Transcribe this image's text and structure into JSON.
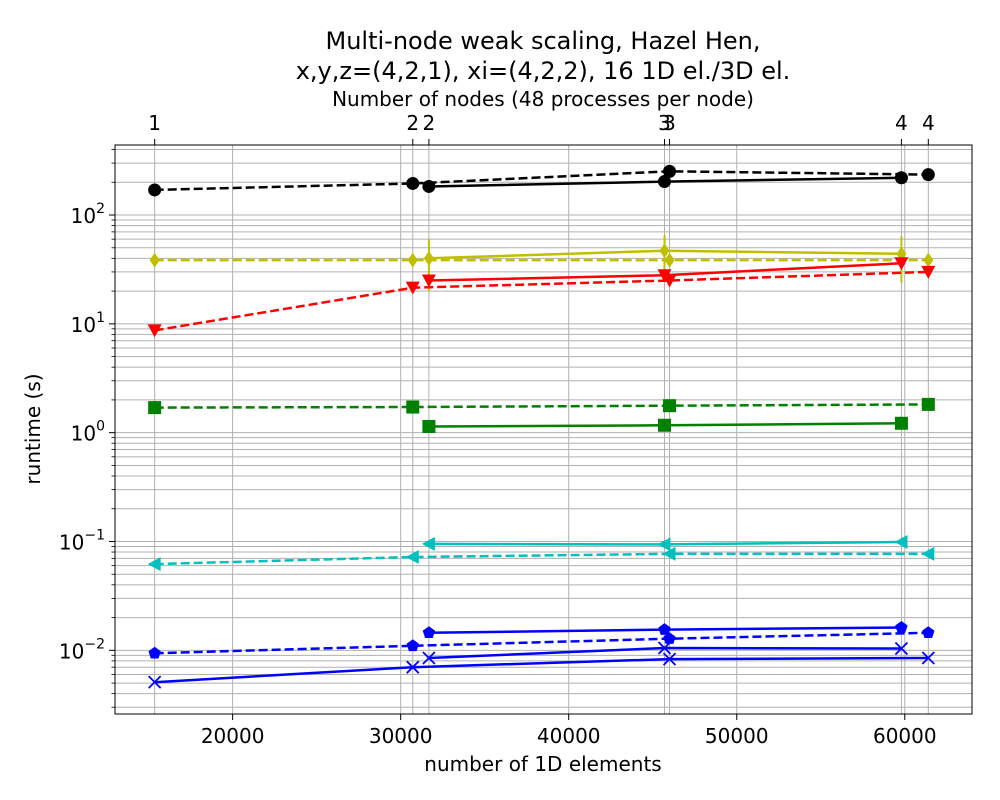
{
  "chart_data": {
    "type": "line",
    "title": [
      "Multi-node weak scaling, Hazel Hen,",
      "x,y,z=(4,2,1), xi=(4,2,2), 16 1D el./3D el."
    ],
    "xlabel": "number of 1D elements",
    "ylabel": "runtime (s)",
    "top_xlabel": "Number of nodes (48 processes per node)",
    "xlim": [
      13000,
      64000
    ],
    "ylim": [
      0.0026,
      440
    ],
    "yscale": "log",
    "grid": true,
    "x_ticks": [
      20000,
      30000,
      40000,
      50000,
      60000
    ],
    "x_tick_labels": [
      "20000",
      "30000",
      "40000",
      "50000",
      "60000"
    ],
    "y_ticks": [
      0.01,
      0.1,
      1,
      10,
      100
    ],
    "y_tick_labels": [
      [
        "10",
        "−2"
      ],
      [
        "10",
        "−1"
      ],
      [
        "10",
        "0"
      ],
      [
        "10",
        "1"
      ],
      [
        "10",
        "2"
      ]
    ],
    "top_ticks": [
      {
        "x": 15360,
        "label": "1"
      },
      {
        "x": 30720,
        "label": "2"
      },
      {
        "x": 31680,
        "label": "2"
      },
      {
        "x": 45700,
        "label": "3"
      },
      {
        "x": 46000,
        "label": "3"
      },
      {
        "x": 59800,
        "label": "4"
      },
      {
        "x": 61400,
        "label": "4"
      }
    ],
    "series": [
      {
        "color": "#000000",
        "marker": "circle",
        "dash": true,
        "x": [
          15360,
          30720,
          46000,
          61400
        ],
        "y": [
          170,
          195,
          252,
          235
        ]
      },
      {
        "color": "#000000",
        "marker": "circle",
        "dash": false,
        "x": [
          31680,
          45700,
          59800
        ],
        "y": [
          183,
          203,
          220
        ]
      },
      {
        "color": "#bfbf00",
        "marker": "diamond",
        "dash": true,
        "x": [
          15360,
          30720,
          46000,
          61400
        ],
        "y": [
          38.5,
          38.5,
          38.5,
          38.5
        ],
        "err": [
          3,
          3,
          3,
          3
        ]
      },
      {
        "color": "#bfbf00",
        "marker": "diamond",
        "dash": false,
        "x": [
          31680,
          45700,
          59800
        ],
        "y": [
          40,
          47,
          44
        ],
        "err": [
          20,
          18,
          20
        ]
      },
      {
        "color": "#ff0000",
        "marker": "triangle-down",
        "dash": true,
        "x": [
          15360,
          30720,
          46000,
          61400
        ],
        "y": [
          8.7,
          21.5,
          25,
          30
        ]
      },
      {
        "color": "#ff0000",
        "marker": "triangle-down",
        "dash": false,
        "x": [
          31680,
          45700,
          59800
        ],
        "y": [
          25,
          28,
          36
        ]
      },
      {
        "color": "#008000",
        "marker": "square",
        "dash": true,
        "x": [
          15360,
          30720,
          46000,
          61400
        ],
        "y": [
          1.7,
          1.72,
          1.77,
          1.82
        ]
      },
      {
        "color": "#008000",
        "marker": "square",
        "dash": false,
        "x": [
          31680,
          45700,
          59800
        ],
        "y": [
          1.14,
          1.17,
          1.22
        ]
      },
      {
        "color": "#00bfbf",
        "marker": "triangle-left",
        "dash": true,
        "x": [
          15360,
          30720,
          46000,
          61400
        ],
        "y": [
          0.062,
          0.072,
          0.077,
          0.077
        ]
      },
      {
        "color": "#00bfbf",
        "marker": "triangle-left",
        "dash": false,
        "x": [
          31680,
          45700,
          59800
        ],
        "y": [
          0.095,
          0.094,
          0.099
        ]
      },
      {
        "color": "#0000ff",
        "marker": "pentagon",
        "dash": true,
        "x": [
          15360,
          30720,
          46000,
          61400
        ],
        "y": [
          0.0094,
          0.011,
          0.0128,
          0.0145
        ]
      },
      {
        "color": "#0000ff",
        "marker": "pentagon",
        "dash": false,
        "x": [
          31680,
          45700,
          59800
        ],
        "y": [
          0.0145,
          0.0155,
          0.0162
        ]
      },
      {
        "color": "#0000ff",
        "marker": "x",
        "dash": false,
        "x": [
          15360,
          30720,
          46000,
          61400
        ],
        "y": [
          0.0051,
          0.007,
          0.0083,
          0.0085
        ]
      },
      {
        "color": "#0000ff",
        "marker": "x",
        "dash": false,
        "x": [
          31680,
          45700,
          59800
        ],
        "y": [
          0.0085,
          0.0105,
          0.0104
        ]
      }
    ]
  }
}
